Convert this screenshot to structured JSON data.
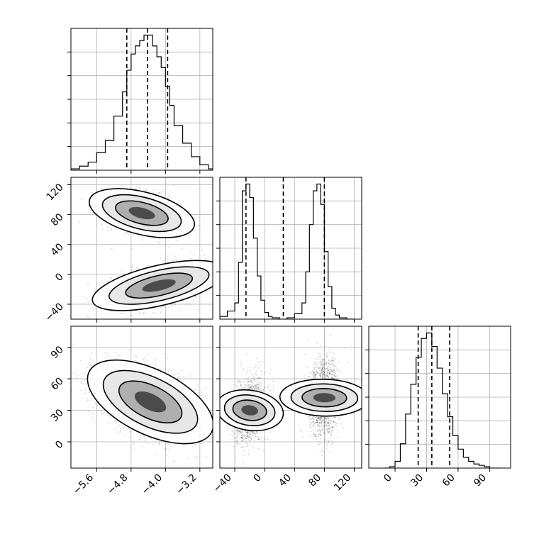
{
  "chart_data": {
    "type": "corner",
    "grid": true,
    "parameters": [
      {
        "range": [
          -6.2,
          -2.9
        ],
        "ticks": [
          -5.6,
          -4.8,
          -4.0,
          -3.2
        ],
        "tick_labels": [
          "−5.6",
          "−4.8",
          "−4.0",
          "−3.2"
        ]
      },
      {
        "range": [
          -60,
          130
        ],
        "ticks": [
          -40,
          0,
          40,
          80,
          120
        ],
        "tick_labels": [
          "−40",
          "0",
          "40",
          "80",
          "120"
        ]
      },
      {
        "range": [
          -25,
          110
        ],
        "ticks": [
          0,
          30,
          60,
          90
        ],
        "tick_labels": [
          "0",
          "30",
          "60",
          "90"
        ]
      }
    ],
    "histograms": [
      {
        "param": 0,
        "bin_edges": [
          -6.2,
          -6.0,
          -5.8,
          -5.6,
          -5.4,
          -5.2,
          -5.0,
          -4.9,
          -4.8,
          -4.7,
          -4.6,
          -4.5,
          -4.4,
          -4.3,
          -4.2,
          -4.1,
          -4.0,
          -3.9,
          -3.8,
          -3.6,
          -3.4,
          -3.2,
          -3.0,
          -2.9
        ],
        "counts": [
          0.01,
          0.03,
          0.06,
          0.13,
          0.22,
          0.4,
          0.58,
          0.74,
          0.86,
          0.92,
          0.96,
          1.0,
          1.0,
          0.92,
          0.84,
          0.76,
          0.62,
          0.48,
          0.33,
          0.2,
          0.1,
          0.04,
          0.01
        ],
        "quantiles": [
          -4.9,
          -4.42,
          -3.95
        ],
        "ymax": 1.05
      },
      {
        "param": 1,
        "bin_edges": [
          -60,
          -50,
          -40,
          -35,
          -30,
          -25,
          -20,
          -15,
          -10,
          -5,
          0,
          5,
          10,
          20,
          30,
          40,
          50,
          55,
          60,
          65,
          70,
          75,
          80,
          85,
          90,
          95,
          100,
          110,
          120
        ],
        "counts": [
          0.02,
          0.06,
          0.12,
          0.42,
          0.95,
          1.0,
          0.9,
          0.6,
          0.32,
          0.14,
          0.05,
          0.02,
          0.01,
          0.0,
          0.01,
          0.04,
          0.12,
          0.35,
          0.7,
          0.95,
          1.0,
          0.85,
          0.5,
          0.24,
          0.08,
          0.03,
          0.01,
          0.0
        ],
        "quantiles": [
          -25,
          25,
          80
        ],
        "ymax": 1.05
      },
      {
        "param": 2,
        "bin_edges": [
          -10,
          -5,
          0,
          5,
          10,
          15,
          20,
          25,
          30,
          35,
          40,
          45,
          50,
          55,
          60,
          65,
          70,
          75,
          80,
          85,
          90,
          95,
          100
        ],
        "counts": [
          0.0,
          0.01,
          0.05,
          0.18,
          0.4,
          0.62,
          0.82,
          0.96,
          1.0,
          0.9,
          0.74,
          0.55,
          0.38,
          0.24,
          0.14,
          0.08,
          0.05,
          0.03,
          0.02,
          0.01,
          0.0,
          0.0
        ],
        "quantiles": [
          22,
          35,
          52
        ],
        "ymax": 1.05
      }
    ],
    "joint": [
      {
        "x_param": 0,
        "y_param": 1,
        "modes": [
          {
            "cx": -4.55,
            "cy": 82,
            "sx": 0.45,
            "sy": 14,
            "rho": -0.35,
            "weight": 0.5
          },
          {
            "cx": -4.15,
            "cy": -15,
            "sx": 0.55,
            "sy": 14,
            "rho": 0.45,
            "weight": 0.5
          }
        ]
      },
      {
        "x_param": 0,
        "y_param": 2,
        "modes": [
          {
            "cx": -4.35,
            "cy": 38,
            "sx": 0.55,
            "sy": 16,
            "rho": -0.45,
            "weight": 1.0
          }
        ]
      },
      {
        "x_param": 1,
        "y_param": 2,
        "modes": [
          {
            "cx": -20,
            "cy": 30,
            "sx": 10,
            "sy": 15,
            "rho": 0.25,
            "weight": 0.5
          },
          {
            "cx": 80,
            "cy": 42,
            "sx": 10,
            "sy": 18,
            "rho": 0.05,
            "weight": 0.5
          }
        ]
      }
    ]
  }
}
